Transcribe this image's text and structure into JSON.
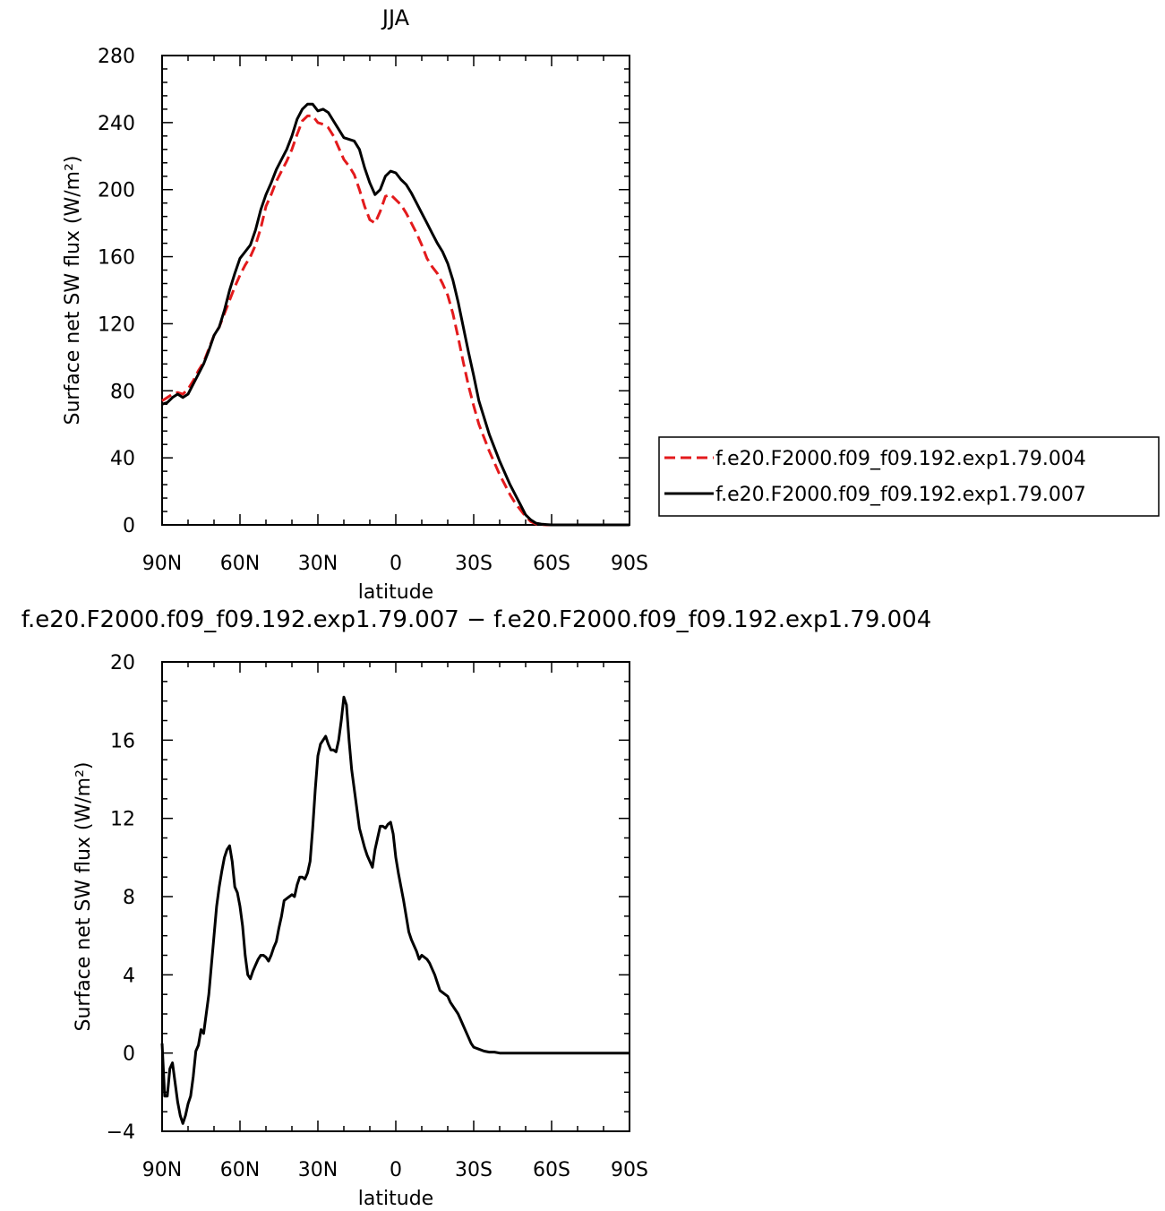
{
  "chart_data": [
    {
      "type": "line",
      "title": "JJA",
      "xlabel": "latitude",
      "ylabel": "Surface net SW flux (W/m²)",
      "xlim": [
        90,
        -90
      ],
      "ylim": [
        0,
        280
      ],
      "x_ticks": [
        90,
        60,
        30,
        0,
        -30,
        -60,
        -90
      ],
      "x_tick_labels": [
        "90N",
        "60N",
        "30N",
        "0",
        "30S",
        "60S",
        "90S"
      ],
      "y_ticks": [
        0,
        40,
        80,
        120,
        160,
        200,
        240,
        280
      ],
      "y_tick_labels": [
        "0",
        "40",
        "80",
        "120",
        "160",
        "200",
        "240",
        "280"
      ],
      "legend": "right",
      "series": [
        {
          "name": "f.e20.F2000.f09_f09.192.exp1.79.004",
          "color": "#e31a1c",
          "dash": "dashed",
          "x": [
            90,
            88,
            86,
            84,
            82,
            80,
            78,
            76,
            74,
            72,
            70,
            68,
            66,
            64,
            62,
            60,
            58,
            56,
            54,
            52,
            50,
            48,
            46,
            44,
            42,
            40,
            38,
            36,
            34,
            32,
            30,
            28,
            26,
            24,
            22,
            20,
            18,
            16,
            14,
            12,
            10,
            8,
            6,
            4,
            2,
            0,
            -2,
            -4,
            -6,
            -8,
            -10,
            -12,
            -14,
            -16,
            -18,
            -20,
            -22,
            -24,
            -26,
            -28,
            -30,
            -32,
            -34,
            -36,
            -38,
            -40,
            -42,
            -44,
            -46,
            -48,
            -50,
            -52,
            -54,
            -56,
            -58,
            -60,
            -62,
            -64,
            -66,
            -68,
            -70,
            -75,
            -80,
            -85,
            -90
          ],
          "y": [
            74,
            76,
            78,
            79,
            78,
            81,
            86,
            92,
            97,
            105,
            113,
            118,
            126,
            134,
            142,
            149,
            155,
            160,
            167,
            177,
            190,
            197,
            205,
            211,
            217,
            224,
            233,
            241,
            244,
            244,
            240,
            239,
            237,
            232,
            225,
            218,
            214,
            209,
            200,
            190,
            182,
            180,
            187,
            196,
            197,
            194,
            191,
            186,
            180,
            174,
            167,
            159,
            154,
            150,
            144,
            137,
            126,
            112,
            97,
            83,
            71,
            60,
            52,
            44,
            37,
            30,
            24,
            18,
            13,
            9,
            5,
            2,
            0.5,
            0.2,
            0,
            0,
            0,
            0,
            0,
            0,
            0,
            0,
            0,
            0,
            0
          ]
        },
        {
          "name": "f.e20.F2000.f09_f09.192.exp1.79.007",
          "color": "#000000",
          "dash": "solid",
          "x": [
            90,
            88,
            86,
            84,
            82,
            80,
            78,
            76,
            74,
            72,
            70,
            68,
            66,
            64,
            62,
            60,
            58,
            56,
            54,
            52,
            50,
            48,
            46,
            44,
            42,
            40,
            38,
            36,
            34,
            32,
            30,
            28,
            26,
            24,
            22,
            20,
            18,
            16,
            14,
            12,
            10,
            8,
            6,
            4,
            2,
            0,
            -2,
            -4,
            -6,
            -8,
            -10,
            -12,
            -14,
            -16,
            -18,
            -20,
            -22,
            -24,
            -26,
            -28,
            -30,
            -32,
            -34,
            -36,
            -38,
            -40,
            -42,
            -44,
            -46,
            -48,
            -50,
            -52,
            -54,
            -56,
            -58,
            -60,
            -62,
            -64,
            -66,
            -68,
            -70,
            -75,
            -80,
            -85,
            -90
          ],
          "y": [
            72,
            73,
            76,
            78,
            76,
            78,
            84,
            90,
            96,
            104,
            113,
            118,
            128,
            140,
            150,
            159,
            163,
            167,
            176,
            188,
            197,
            204,
            212,
            218,
            224,
            232,
            242,
            248,
            251,
            251,
            247,
            248,
            246,
            241,
            236,
            231,
            230,
            229,
            224,
            213,
            204,
            197,
            200,
            208,
            211,
            210,
            206,
            203,
            198,
            192,
            186,
            180,
            174,
            168,
            163,
            156,
            146,
            133,
            118,
            103,
            89,
            74,
            64,
            54,
            46,
            38,
            31,
            24,
            18,
            12,
            6,
            3,
            1,
            0.5,
            0.2,
            0,
            0,
            0,
            0,
            0,
            0,
            0,
            0,
            0,
            0
          ]
        }
      ]
    },
    {
      "type": "line",
      "title": "f.e20.F2000.f09_f09.192.exp1.79.007 − f.e20.F2000.f09_f09.192.exp1.79.004",
      "xlabel": "latitude",
      "ylabel": "Surface net SW flux (W/m²)",
      "xlim": [
        90,
        -90
      ],
      "ylim": [
        -4,
        20
      ],
      "x_ticks": [
        90,
        60,
        30,
        0,
        -30,
        -60,
        -90
      ],
      "x_tick_labels": [
        "90N",
        "60N",
        "30N",
        "0",
        "30S",
        "60S",
        "90S"
      ],
      "y_ticks": [
        -4,
        0,
        4,
        8,
        12,
        16,
        20
      ],
      "y_tick_labels": [
        "−4",
        "0",
        "4",
        "8",
        "12",
        "16",
        "20"
      ],
      "series": [
        {
          "color": "#000000",
          "dash": "solid",
          "x": [
            90,
            89,
            88,
            87,
            86,
            85,
            84,
            83,
            82,
            81,
            80,
            79,
            78,
            77,
            76,
            75,
            74,
            73,
            72,
            71,
            70,
            69,
            68,
            67,
            66,
            65,
            64,
            63,
            62,
            61,
            60,
            59,
            58,
            57,
            56,
            55,
            54,
            53,
            52,
            51,
            50,
            49,
            48,
            47,
            46,
            45,
            44,
            43,
            42,
            41,
            40,
            39,
            38,
            37,
            36,
            35,
            34,
            33,
            32,
            31,
            30,
            29,
            28,
            27,
            26,
            25,
            24,
            23,
            22,
            21,
            20,
            19,
            18,
            17,
            16,
            15,
            14,
            13,
            12,
            11,
            10,
            9,
            8,
            7,
            6,
            5,
            4,
            3,
            2,
            1,
            0,
            -1,
            -2,
            -3,
            -4,
            -5,
            -6,
            -7,
            -8,
            -9,
            -10,
            -11,
            -12,
            -13,
            -14,
            -15,
            -16,
            -17,
            -18,
            -19,
            -20,
            -21,
            -22,
            -23,
            -24,
            -25,
            -26,
            -27,
            -28,
            -29,
            -30,
            -32,
            -34,
            -36,
            -38,
            -40,
            -42,
            -44,
            -46,
            -48,
            -50,
            -52,
            -54,
            -56,
            -58,
            -60,
            -62,
            -64,
            -66,
            -68,
            -70,
            -75,
            -80,
            -85,
            -90
          ],
          "y": [
            0.5,
            -2.2,
            -2.2,
            -0.8,
            -0.5,
            -1.5,
            -2.5,
            -3.2,
            -3.6,
            -3.2,
            -2.6,
            -2.2,
            -1.2,
            0.1,
            0.4,
            1.2,
            1.0,
            2.0,
            3.0,
            4.5,
            6.0,
            7.5,
            8.5,
            9.3,
            10.0,
            10.4,
            10.6,
            9.8,
            8.5,
            8.2,
            7.5,
            6.5,
            5.0,
            4.0,
            3.8,
            4.2,
            4.5,
            4.8,
            5.0,
            5.0,
            4.9,
            4.7,
            5.0,
            5.4,
            5.7,
            6.4,
            7.0,
            7.8,
            7.9,
            8.0,
            8.1,
            8.0,
            8.6,
            9.0,
            9.0,
            8.9,
            9.2,
            9.8,
            11.5,
            13.5,
            15.2,
            15.8,
            16.0,
            16.2,
            15.8,
            15.5,
            15.5,
            15.4,
            16.0,
            17.0,
            18.2,
            17.8,
            16.0,
            14.5,
            13.5,
            12.5,
            11.5,
            11.0,
            10.5,
            10.1,
            9.8,
            9.5,
            10.4,
            11.0,
            11.6,
            11.6,
            11.5,
            11.7,
            11.8,
            11.2,
            10.0,
            9.2,
            8.5,
            7.8,
            7.0,
            6.2,
            5.8,
            5.5,
            5.2,
            4.8,
            5.0,
            4.9,
            4.8,
            4.6,
            4.3,
            4.0,
            3.6,
            3.2,
            3.1,
            3.0,
            2.9,
            2.6,
            2.4,
            2.2,
            2.0,
            1.7,
            1.4,
            1.1,
            0.8,
            0.5,
            0.3,
            0.2,
            0.1,
            0.05,
            0.05,
            0,
            0,
            0,
            0,
            0,
            0,
            0,
            0,
            0,
            0,
            0,
            0,
            0,
            0,
            0,
            0,
            0,
            0,
            0,
            0
          ]
        }
      ]
    }
  ]
}
